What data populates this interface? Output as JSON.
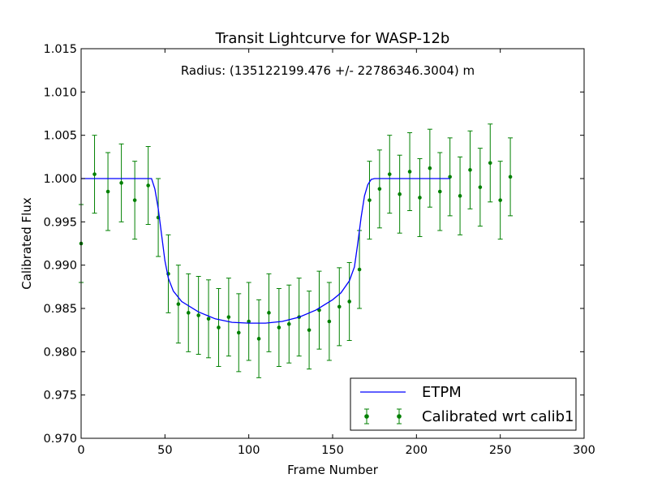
{
  "chart_data": {
    "type": "scatter",
    "title": "Transit Lightcurve for WASP-12b",
    "xlabel": "Frame Number",
    "ylabel": "Calibrated Flux",
    "xlim": [
      0,
      300
    ],
    "ylim": [
      0.97,
      1.015
    ],
    "xticks": [
      "0",
      "50",
      "100",
      "150",
      "200",
      "250",
      "300"
    ],
    "yticks": [
      "0.970",
      "0.975",
      "0.980",
      "0.985",
      "0.990",
      "0.995",
      "1.000",
      "1.005",
      "1.010",
      "1.015"
    ],
    "annotation": "Radius: (135122199.476 +/- 22786346.3004) m",
    "legend_position": "lower-right",
    "colors": {
      "model": "#0000ff",
      "data": "#008000"
    },
    "series": [
      {
        "name": "ETPM",
        "kind": "line",
        "x": [
          0,
          42,
          44,
          46,
          48,
          50,
          52,
          55,
          60,
          70,
          80,
          90,
          100,
          110,
          120,
          130,
          140,
          150,
          155,
          160,
          163,
          165,
          167,
          169,
          171,
          173,
          175,
          220
        ],
        "y": [
          1.0,
          1.0,
          0.9988,
          0.9965,
          0.9935,
          0.9905,
          0.9885,
          0.987,
          0.9858,
          0.9846,
          0.9838,
          0.9834,
          0.9833,
          0.9833,
          0.9835,
          0.984,
          0.9848,
          0.986,
          0.9868,
          0.9882,
          0.9898,
          0.9925,
          0.9955,
          0.998,
          0.9993,
          0.9999,
          1.0,
          1.0
        ]
      },
      {
        "name": "Calibrated wrt calib1",
        "kind": "errorbar",
        "x": [
          0,
          8,
          16,
          24,
          32,
          40,
          46,
          52,
          58,
          64,
          70,
          76,
          82,
          88,
          94,
          100,
          106,
          112,
          118,
          124,
          130,
          136,
          142,
          148,
          154,
          160,
          166,
          172,
          178,
          184,
          190,
          196,
          202,
          208,
          214,
          220,
          226,
          232,
          238,
          244,
          250,
          256
        ],
        "y": [
          0.9925,
          1.0005,
          0.9985,
          0.9995,
          0.9975,
          0.9992,
          0.9955,
          0.989,
          0.9855,
          0.9845,
          0.9842,
          0.9838,
          0.9828,
          0.984,
          0.9822,
          0.9835,
          0.9815,
          0.9845,
          0.9828,
          0.9832,
          0.984,
          0.9825,
          0.9848,
          0.9835,
          0.9852,
          0.9858,
          0.9895,
          0.9975,
          0.9988,
          1.0005,
          0.9982,
          1.0008,
          0.9978,
          1.0012,
          0.9985,
          1.0002,
          0.998,
          1.001,
          0.999,
          1.0018,
          0.9975,
          1.0002
        ],
        "err": 0.0045
      }
    ]
  }
}
